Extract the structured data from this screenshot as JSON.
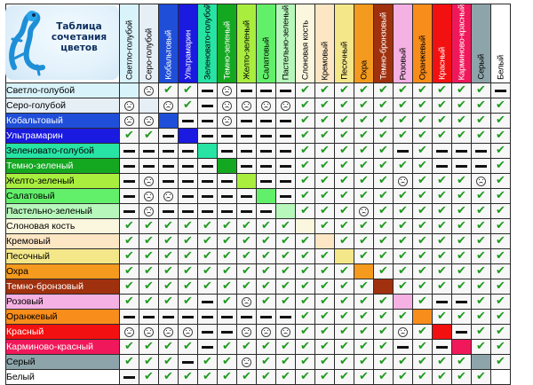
{
  "title_lines": [
    "Таблица",
    "сочетания",
    "цветов"
  ],
  "icons": {
    "ok": "checkmark-icon",
    "neutral": "dash-icon",
    "bad": "frown-face-icon",
    "logo": "gecko-logo-icon"
  },
  "colors": [
    {
      "name": "Светло-голубой",
      "hex": "#d9f3fb",
      "text": "#000000"
    },
    {
      "name": "Серо-голубой",
      "hex": "#e6eef6",
      "text": "#000000"
    },
    {
      "name": "Кобальтовый",
      "hex": "#1f4fd9",
      "text": "#ffffff"
    },
    {
      "name": "Ультрамарин",
      "hex": "#1a1ae0",
      "text": "#ffffff"
    },
    {
      "name": "Зеленовато-голубой",
      "hex": "#27e4a4",
      "text": "#000000"
    },
    {
      "name": "Темно-зеленый",
      "hex": "#14a821",
      "text": "#ffffff"
    },
    {
      "name": "Желто-зеленый",
      "hex": "#a9ee3f",
      "text": "#000000"
    },
    {
      "name": "Салатовый",
      "hex": "#62f06a",
      "text": "#000000"
    },
    {
      "name": "Пастельно-зеленый",
      "hex": "#b7f7bb",
      "text": "#000000"
    },
    {
      "name": "Слоновая кость",
      "hex": "#fbf6de",
      "text": "#000000"
    },
    {
      "name": "Кремовый",
      "hex": "#fde6c4",
      "text": "#000000"
    },
    {
      "name": "Песочный",
      "hex": "#f4e78a",
      "text": "#000000"
    },
    {
      "name": "Охра",
      "hex": "#f49a1e",
      "text": "#000000"
    },
    {
      "name": "Темно-бронзовый",
      "hex": "#a0310e",
      "text": "#ffffff"
    },
    {
      "name": "Розовый",
      "hex": "#f5b1e3",
      "text": "#000000"
    },
    {
      "name": "Оранжевый",
      "hex": "#f98d1b",
      "text": "#000000"
    },
    {
      "name": "Красный",
      "hex": "#f31010",
      "text": "#ffffff"
    },
    {
      "name": "Карминово-красный",
      "hex": "#f0185a",
      "text": "#ffffff"
    },
    {
      "name": "Серый",
      "hex": "#8da5aa",
      "text": "#000000"
    },
    {
      "name": "Белый",
      "hex": "#ffffff",
      "text": "#000000"
    }
  ],
  "matrix": [
    [
      "x",
      "n",
      "o",
      "o",
      "b",
      "n",
      "b",
      "b",
      "b",
      "o",
      "o",
      "o",
      "o",
      "o",
      "o",
      "o",
      "o",
      "o",
      "o",
      "b"
    ],
    [
      "n",
      "x",
      "n",
      "o",
      "b",
      "n",
      "n",
      "n",
      "n",
      "o",
      "o",
      "o",
      "o",
      "o",
      "o",
      "o",
      "o",
      "o",
      "o",
      "o"
    ],
    [
      "n",
      "n",
      "x",
      "b",
      "b",
      "n",
      "b",
      "b",
      "b",
      "o",
      "o",
      "o",
      "o",
      "o",
      "o",
      "o",
      "o",
      "o",
      "o",
      "o"
    ],
    [
      "o",
      "o",
      "b",
      "x",
      "b",
      "b",
      "b",
      "b",
      "b",
      "o",
      "o",
      "o",
      "o",
      "o",
      "o",
      "o",
      "o",
      "o",
      "o",
      "o"
    ],
    [
      "b",
      "b",
      "b",
      "b",
      "x",
      "b",
      "b",
      "b",
      "b",
      "o",
      "o",
      "o",
      "o",
      "o",
      "b",
      "o",
      "b",
      "b",
      "b",
      "o"
    ],
    [
      "b",
      "b",
      "b",
      "b",
      "b",
      "x",
      "b",
      "b",
      "b",
      "o",
      "o",
      "o",
      "o",
      "o",
      "o",
      "o",
      "b",
      "b",
      "b",
      "o"
    ],
    [
      "b",
      "n",
      "b",
      "b",
      "b",
      "b",
      "x",
      "b",
      "b",
      "o",
      "o",
      "o",
      "o",
      "o",
      "n",
      "o",
      "o",
      "o",
      "n",
      "o"
    ],
    [
      "b",
      "n",
      "n",
      "b",
      "b",
      "b",
      "b",
      "x",
      "b",
      "o",
      "o",
      "o",
      "o",
      "o",
      "o",
      "o",
      "o",
      "o",
      "o",
      "o"
    ],
    [
      "b",
      "n",
      "b",
      "b",
      "b",
      "b",
      "b",
      "b",
      "x",
      "o",
      "o",
      "o",
      "n",
      "o",
      "o",
      "o",
      "o",
      "o",
      "o",
      "o"
    ],
    [
      "o",
      "o",
      "o",
      "o",
      "o",
      "o",
      "o",
      "o",
      "o",
      "x",
      "o",
      "o",
      "o",
      "o",
      "o",
      "o",
      "o",
      "o",
      "o",
      "o"
    ],
    [
      "o",
      "o",
      "o",
      "o",
      "o",
      "o",
      "o",
      "o",
      "o",
      "o",
      "x",
      "o",
      "o",
      "o",
      "o",
      "o",
      "o",
      "o",
      "o",
      "o"
    ],
    [
      "o",
      "o",
      "o",
      "o",
      "o",
      "o",
      "o",
      "o",
      "o",
      "o",
      "o",
      "x",
      "o",
      "o",
      "o",
      "o",
      "o",
      "o",
      "o",
      "o"
    ],
    [
      "o",
      "o",
      "o",
      "o",
      "o",
      "o",
      "o",
      "o",
      "o",
      "o",
      "o",
      "o",
      "x",
      "o",
      "o",
      "o",
      "o",
      "o",
      "o",
      "o"
    ],
    [
      "o",
      "o",
      "o",
      "o",
      "o",
      "o",
      "o",
      "o",
      "o",
      "o",
      "o",
      "o",
      "o",
      "x",
      "o",
      "o",
      "o",
      "o",
      "o",
      "o"
    ],
    [
      "o",
      "o",
      "o",
      "o",
      "b",
      "o",
      "n",
      "o",
      "o",
      "o",
      "o",
      "o",
      "o",
      "o",
      "x",
      "o",
      "b",
      "b",
      "o",
      "o"
    ],
    [
      "b",
      "b",
      "b",
      "b",
      "b",
      "b",
      "b",
      "b",
      "b",
      "o",
      "o",
      "o",
      "o",
      "o",
      "o",
      "x",
      "o",
      "o",
      "o",
      "o"
    ],
    [
      "n",
      "n",
      "n",
      "n",
      "b",
      "b",
      "n",
      "n",
      "n",
      "o",
      "o",
      "o",
      "o",
      "o",
      "n",
      "o",
      "x",
      "b",
      "o",
      "o"
    ],
    [
      "o",
      "o",
      "o",
      "o",
      "b",
      "o",
      "o",
      "o",
      "o",
      "o",
      "o",
      "o",
      "o",
      "o",
      "b",
      "o",
      "b",
      "x",
      "o",
      "o"
    ],
    [
      "o",
      "o",
      "o",
      "b",
      "o",
      "o",
      "n",
      "o",
      "o",
      "o",
      "o",
      "o",
      "o",
      "o",
      "o",
      "o",
      "o",
      "o",
      "x",
      "o"
    ],
    [
      "b",
      "o",
      "o",
      "o",
      "o",
      "o",
      "o",
      "o",
      "o",
      "o",
      "o",
      "o",
      "o",
      "o",
      "o",
      "o",
      "o",
      "o",
      "o",
      "x"
    ]
  ]
}
